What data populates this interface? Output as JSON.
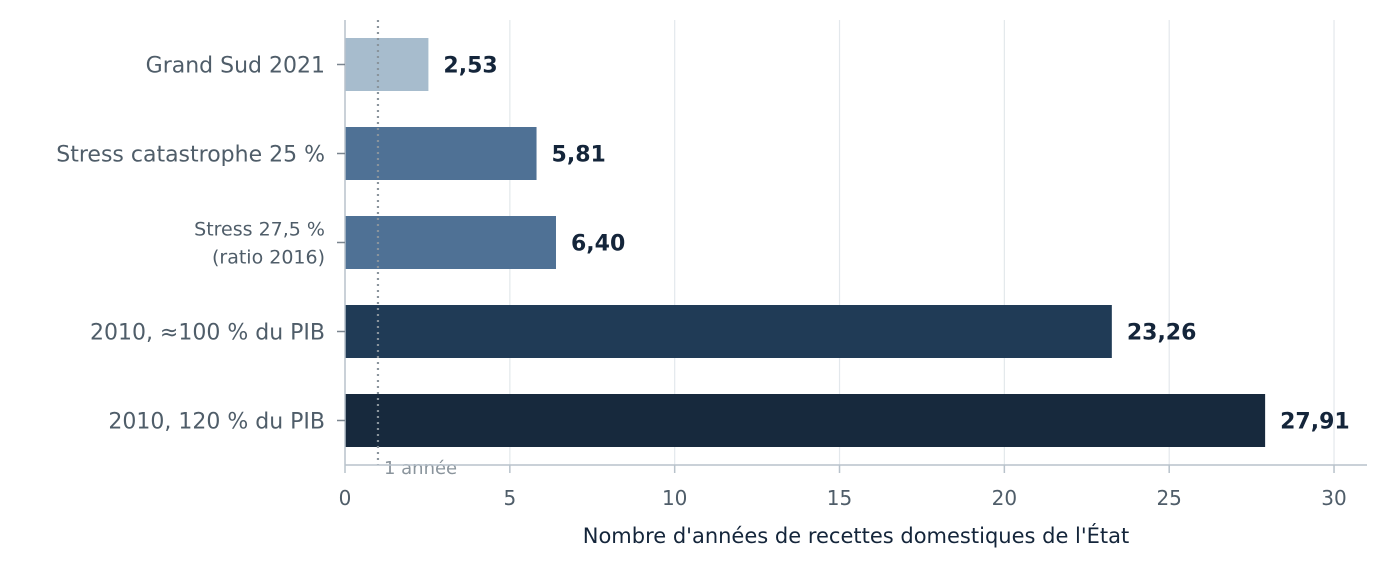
{
  "chart_data": {
    "type": "bar",
    "orientation": "horizontal",
    "categories": [
      [
        "Grand Sud 2021"
      ],
      [
        "Stress catastrophe 25 %"
      ],
      [
        "Stress 27,5 %",
        "(ratio 2016)"
      ],
      [
        "2010, ≈100 % du PIB"
      ],
      [
        "2010, 120 % du PIB"
      ]
    ],
    "values": [
      2.53,
      5.81,
      6.4,
      23.26,
      27.91
    ],
    "value_labels": [
      "2,53",
      "5,81",
      "6,40",
      "23,26",
      "27,91"
    ],
    "colors": [
      "#a7bccd",
      "#4f7195",
      "#4f7195",
      "#203b56",
      "#17293d"
    ],
    "xlabel": "Nombre d'années de recettes domestiques de l'État",
    "ylabel": "",
    "xlim": [
      0,
      31
    ],
    "xticks": [
      0,
      5,
      10,
      15,
      20,
      25,
      30
    ],
    "grid": "vertical",
    "reference_line": {
      "x": 1,
      "label": "1 année"
    }
  }
}
